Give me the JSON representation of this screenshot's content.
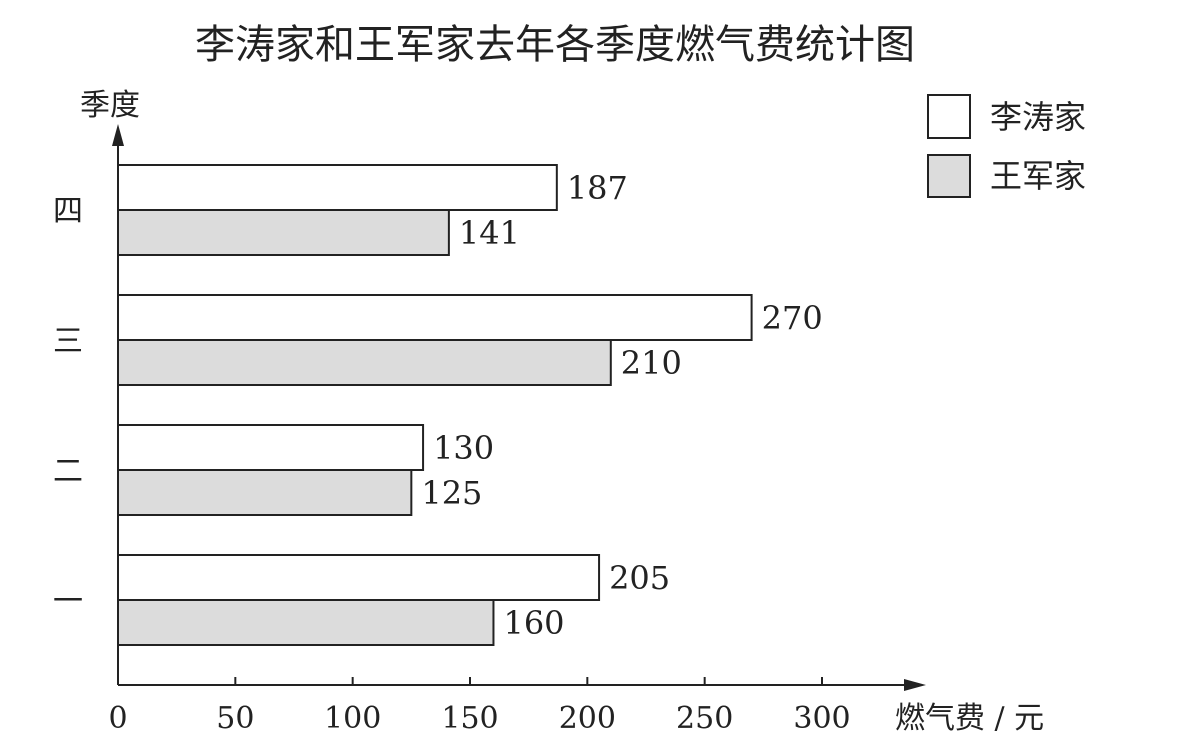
{
  "chart_data": {
    "type": "bar",
    "orientation": "horizontal",
    "title": "李涛家和王军家去年各季度燃气费统计图",
    "ylabel": "季度",
    "xlabel": "燃气费 / 元",
    "categories": [
      "一",
      "二",
      "三",
      "四"
    ],
    "series": [
      {
        "name": "李涛家",
        "values": [
          205,
          130,
          270,
          187
        ],
        "color": "#ffffff"
      },
      {
        "name": "王军家",
        "values": [
          160,
          125,
          210,
          141
        ],
        "color": "#dcdcdc"
      }
    ],
    "xlim": [
      0,
      300
    ],
    "xticks": [
      0,
      50,
      100,
      150,
      200,
      250,
      300
    ],
    "grid": false,
    "legend_position": "top-right",
    "data_labels": true
  }
}
